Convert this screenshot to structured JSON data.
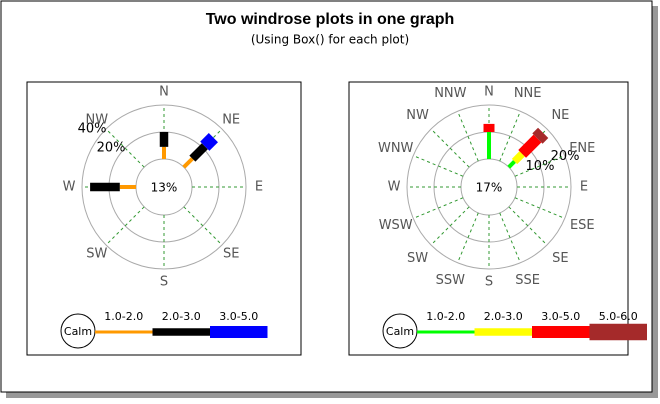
{
  "title": "Two windrose plots in one graph",
  "subtitle": "(Using Box() for each plot)",
  "chart_data": [
    {
      "type": "windrose",
      "directions": [
        "N",
        "NE",
        "E",
        "SE",
        "S",
        "SW",
        "W",
        "NW"
      ],
      "calm": {
        "value": 13,
        "label": "13%"
      },
      "calm_label": "Calm",
      "rlim": [
        0,
        40
      ],
      "rticks": [
        {
          "value": 20,
          "label": "20%"
        },
        {
          "value": 40,
          "label": "40%"
        }
      ],
      "series": [
        {
          "name": "1.0-2.0",
          "color": "#ff9900",
          "values": [
            9,
            9,
            null,
            null,
            null,
            null,
            12,
            null
          ]
        },
        {
          "name": "2.0-3.0",
          "color": "#000000",
          "values": [
            11,
            13,
            null,
            null,
            null,
            null,
            22,
            null
          ]
        },
        {
          "name": "3.0-5.0",
          "color": "#0000ff",
          "values": [
            null,
            9,
            null,
            null,
            null,
            null,
            null,
            null
          ]
        }
      ]
    },
    {
      "type": "windrose",
      "directions": [
        "N",
        "NNE",
        "NE",
        "ENE",
        "E",
        "ESE",
        "SE",
        "SSE",
        "S",
        "SSW",
        "SW",
        "WSW",
        "W",
        "WNW",
        "NW",
        "NNW"
      ],
      "calm": {
        "value": 17,
        "label": "17%"
      },
      "calm_label": "Calm",
      "rlim": [
        0,
        20
      ],
      "rticks": [
        {
          "value": 10,
          "label": "10%"
        },
        {
          "value": 20,
          "label": "20%"
        }
      ],
      "series": [
        {
          "name": "1.0-2.0",
          "color": "#00ff00",
          "values": [
            10,
            null,
            3,
            null,
            null,
            null,
            null,
            null,
            null,
            null,
            null,
            null,
            null,
            null,
            null,
            null
          ]
        },
        {
          "name": "2.0-3.0",
          "color": "#ffff00",
          "values": [
            null,
            null,
            4,
            null,
            null,
            null,
            null,
            null,
            null,
            null,
            null,
            null,
            null,
            null,
            null,
            null
          ]
        },
        {
          "name": "3.0-5.0",
          "color": "#ff0000",
          "values": [
            3,
            null,
            8,
            null,
            null,
            null,
            null,
            null,
            null,
            null,
            null,
            null,
            null,
            null,
            null,
            null
          ]
        },
        {
          "name": "5.0-6.0",
          "color": "#a52a2a",
          "values": [
            null,
            null,
            3,
            null,
            null,
            null,
            null,
            null,
            null,
            null,
            null,
            null,
            null,
            null,
            null,
            null
          ]
        }
      ]
    }
  ]
}
